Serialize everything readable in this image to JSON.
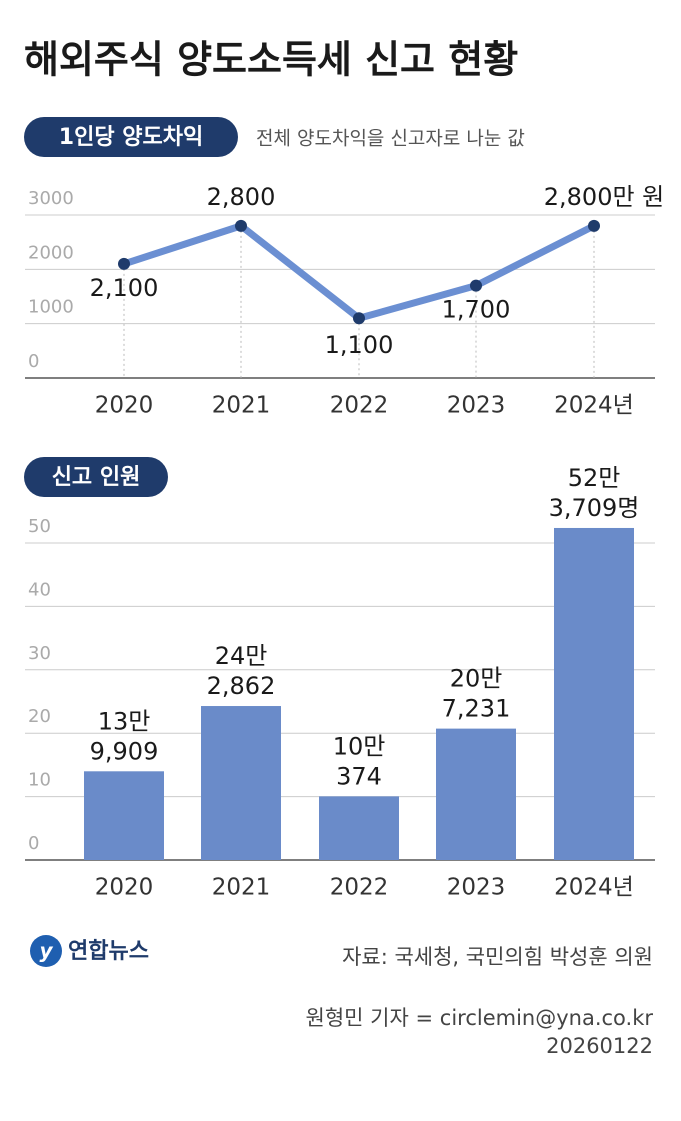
{
  "title": "해외주식 양도소득세 신고 현황",
  "chart_data": [
    {
      "type": "line",
      "badge": "1인당 양도차익",
      "subtitle": "전체 양도차익을 신고자로 나눈 값",
      "categories": [
        "2020",
        "2021",
        "2022",
        "2023",
        "2024년"
      ],
      "values": [
        2100,
        2800,
        1100,
        1700,
        2800
      ],
      "value_labels": [
        "2,100",
        "2,800",
        "1,100",
        "1,700",
        "2,800만 원"
      ],
      "color": "#6b8fd2",
      "marker_color": "#1f3b6b",
      "ylim": [
        0,
        3000
      ],
      "yticks": [
        0,
        1000,
        2000,
        3000
      ],
      "grid": true
    },
    {
      "type": "bar",
      "badge": "신고 인원",
      "categories": [
        "2020",
        "2021",
        "2022",
        "2023",
        "2024년"
      ],
      "values": [
        13.9909,
        24.2862,
        10.0374,
        20.7231,
        52.3709
      ],
      "value_labels": [
        [
          "13만",
          "9,909"
        ],
        [
          "24만",
          "2,862"
        ],
        [
          "10만",
          "374"
        ],
        [
          "20만",
          "7,231"
        ],
        [
          "52만",
          "3,709명"
        ]
      ],
      "color": "#6a8bc9",
      "ylim": [
        0,
        50
      ],
      "yticks": [
        0,
        10,
        20,
        30,
        40,
        50
      ],
      "grid": true
    }
  ],
  "footer": {
    "logo": "연합뉴스",
    "source": "자료: 국세청, 국민의힘 박성훈 의원",
    "credit": "원형민 기자 = circlemin@yna.co.kr",
    "date": "20260122"
  }
}
